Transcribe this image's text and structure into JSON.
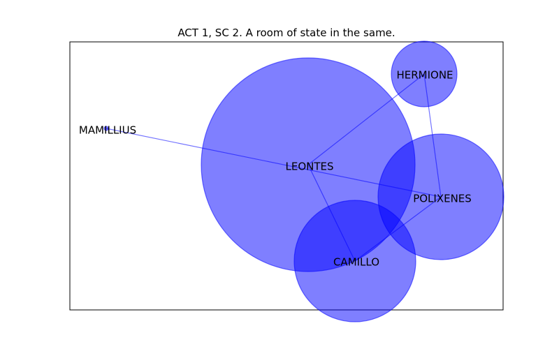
{
  "title": "ACT 1, SC 2. A room of state in the same.",
  "colors": {
    "node_fill": "#0000ff",
    "edge": "#0000ff",
    "frame": "#000000"
  },
  "nodes": [
    {
      "id": "LEONTES",
      "label": "LEONTES"
    },
    {
      "id": "HERMIONE",
      "label": "HERMIONE"
    },
    {
      "id": "MAMILLIUS",
      "label": "MAMILLIUS"
    },
    {
      "id": "POLIXENES",
      "label": "POLIXENES"
    },
    {
      "id": "CAMILLO",
      "label": "CAMILLO"
    }
  ],
  "edges": [
    [
      "MAMILLIUS",
      "POLIXENES"
    ],
    [
      "LEONTES",
      "HERMIONE"
    ],
    [
      "LEONTES",
      "CAMILLO"
    ],
    [
      "HERMIONE",
      "POLIXENES"
    ],
    [
      "POLIXENES",
      "CAMILLO"
    ]
  ]
}
